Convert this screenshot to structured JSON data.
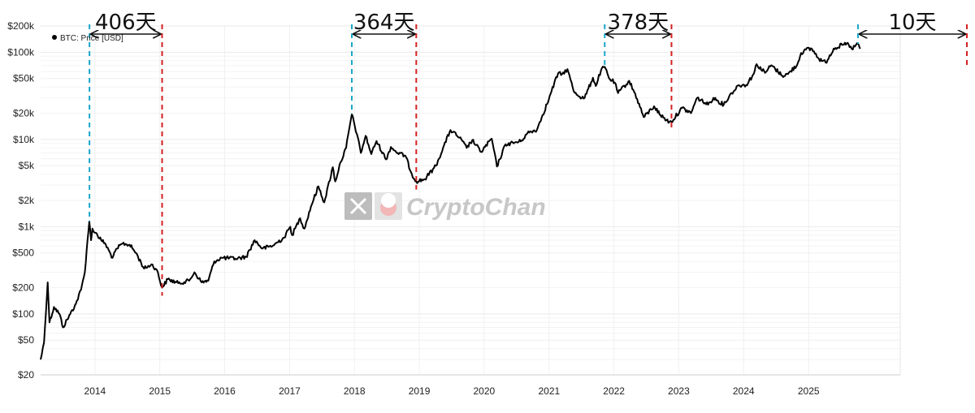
{
  "colors": {
    "price_line": "#000000",
    "peak_marker": "#1aa7c9",
    "bottom_marker": "#d42020",
    "grid": "#e9e9e9",
    "watermark": "#c7c7c7"
  },
  "watermark": {
    "text": "CryptoChan",
    "icons": [
      "x-logo-icon",
      "avatar-icon"
    ]
  },
  "chart_data": {
    "type": "line",
    "title": "",
    "xlabel": "",
    "ylabel": "",
    "yscale": "log",
    "ylim": [
      20,
      200000
    ],
    "xlim": [
      "2013-03-01",
      "2026-06-01"
    ],
    "grid": true,
    "legend_position": "top-left",
    "y_ticks": [
      {
        "value": 20,
        "label": "$20"
      },
      {
        "value": 50,
        "label": "$50"
      },
      {
        "value": 100,
        "label": "$100"
      },
      {
        "value": 200,
        "label": "$200"
      },
      {
        "value": 500,
        "label": "$500"
      },
      {
        "value": 1000,
        "label": "$1k"
      },
      {
        "value": 2000,
        "label": "$2k"
      },
      {
        "value": 5000,
        "label": "$5k"
      },
      {
        "value": 10000,
        "label": "$10k"
      },
      {
        "value": 20000,
        "label": "$20k"
      },
      {
        "value": 50000,
        "label": "$50k"
      },
      {
        "value": 100000,
        "label": "$100k"
      },
      {
        "value": 200000,
        "label": "$200k"
      }
    ],
    "x_ticks": [
      "2014",
      "2015",
      "2016",
      "2017",
      "2018",
      "2019",
      "2020",
      "2021",
      "2022",
      "2023",
      "2024",
      "2025"
    ],
    "series": [
      {
        "name": "BTC: Price [USD]",
        "x": [
          "2013-03-01",
          "2013-03-20",
          "2013-04-10",
          "2013-04-20",
          "2013-05-15",
          "2013-06-15",
          "2013-07-05",
          "2013-08-15",
          "2013-09-15",
          "2013-10-15",
          "2013-11-05",
          "2013-11-20",
          "2013-11-30",
          "2013-12-10",
          "2013-12-18",
          "2014-01-05",
          "2014-02-05",
          "2014-02-25",
          "2014-04-10",
          "2014-05-05",
          "2014-06-05",
          "2014-07-15",
          "2014-08-20",
          "2014-10-05",
          "2014-11-15",
          "2014-12-15",
          "2015-01-14",
          "2015-02-15",
          "2015-04-15",
          "2015-06-15",
          "2015-07-15",
          "2015-08-25",
          "2015-10-01",
          "2015-11-04",
          "2015-12-15",
          "2016-03-01",
          "2016-05-01",
          "2016-06-18",
          "2016-08-02",
          "2016-10-01",
          "2016-12-01",
          "2017-01-05",
          "2017-01-15",
          "2017-03-01",
          "2017-03-25",
          "2017-05-01",
          "2017-06-12",
          "2017-07-15",
          "2017-09-01",
          "2017-09-15",
          "2017-10-15",
          "2017-11-15",
          "2017-12-17",
          "2018-01-15",
          "2018-02-06",
          "2018-03-05",
          "2018-04-06",
          "2018-05-05",
          "2018-06-28",
          "2018-07-25",
          "2018-09-01",
          "2018-10-15",
          "2018-11-20",
          "2018-12-15",
          "2019-02-01",
          "2019-04-05",
          "2019-05-15",
          "2019-06-26",
          "2019-08-15",
          "2019-09-25",
          "2019-10-26",
          "2019-12-15",
          "2020-02-13",
          "2020-03-13",
          "2020-05-01",
          "2020-07-25",
          "2020-09-01",
          "2020-10-25",
          "2020-11-25",
          "2020-12-31",
          "2021-01-15",
          "2021-02-20",
          "2021-03-15",
          "2021-04-14",
          "2021-05-19",
          "2021-06-22",
          "2021-07-20",
          "2021-09-05",
          "2021-09-21",
          "2021-10-20",
          "2021-11-10",
          "2021-12-05",
          "2022-01-05",
          "2022-01-24",
          "2022-03-28",
          "2022-05-12",
          "2022-06-18",
          "2022-08-15",
          "2022-09-20",
          "2022-11-09",
          "2022-11-21",
          "2023-01-20",
          "2023-03-10",
          "2023-04-15",
          "2023-06-15",
          "2023-07-15",
          "2023-09-11",
          "2023-10-25",
          "2023-12-05",
          "2024-01-15",
          "2024-02-28",
          "2024-03-14",
          "2024-05-01",
          "2024-06-05",
          "2024-08-05",
          "2024-09-06",
          "2024-10-29",
          "2024-11-20",
          "2024-12-17",
          "2025-01-20",
          "2025-02-28",
          "2025-04-07",
          "2025-05-22",
          "2025-07-14",
          "2025-08-14",
          "2025-09-01",
          "2025-10-06",
          "2025-10-20"
        ],
        "y": [
          30,
          47,
          230,
          80,
          120,
          100,
          70,
          100,
          130,
          190,
          300,
          700,
          1150,
          700,
          950,
          850,
          700,
          650,
          440,
          560,
          640,
          620,
          500,
          330,
          370,
          320,
          200,
          250,
          225,
          240,
          300,
          230,
          240,
          400,
          440,
          430,
          450,
          700,
          560,
          610,
          750,
          1000,
          800,
          1250,
          950,
          1700,
          2900,
          1900,
          4800,
          3300,
          5500,
          8000,
          19500,
          11500,
          7000,
          11000,
          6800,
          9600,
          5900,
          8200,
          7000,
          6500,
          4000,
          3300,
          3500,
          5000,
          8000,
          12800,
          10500,
          8000,
          9800,
          7200,
          10200,
          4900,
          8800,
          9500,
          11800,
          13000,
          19000,
          29000,
          36000,
          57000,
          56000,
          64000,
          36000,
          31000,
          30000,
          51000,
          41000,
          62000,
          68000,
          50000,
          45000,
          34000,
          47000,
          29000,
          18000,
          24000,
          19000,
          15800,
          16000,
          23000,
          20000,
          30000,
          25000,
          30000,
          25000,
          34000,
          42000,
          42000,
          57000,
          73000,
          58000,
          71000,
          54000,
          56000,
          72000,
          98000,
          107000,
          109000,
          84000,
          76000,
          110000,
          122000,
          123000,
          109000,
          125000,
          110000
        ]
      }
    ],
    "cycles": [
      {
        "peak_date": "2013-12-01",
        "bottom_date": "2015-01-14",
        "days": 406,
        "label": "406天"
      },
      {
        "peak_date": "2017-12-17",
        "bottom_date": "2018-12-15",
        "days": 364,
        "label": "364天"
      },
      {
        "peak_date": "2021-11-10",
        "bottom_date": "2022-11-21",
        "days": 378,
        "label": "378天"
      },
      {
        "peak_date": "2025-10-06",
        "bottom_date": "",
        "days": 10,
        "label": "10天"
      }
    ]
  }
}
